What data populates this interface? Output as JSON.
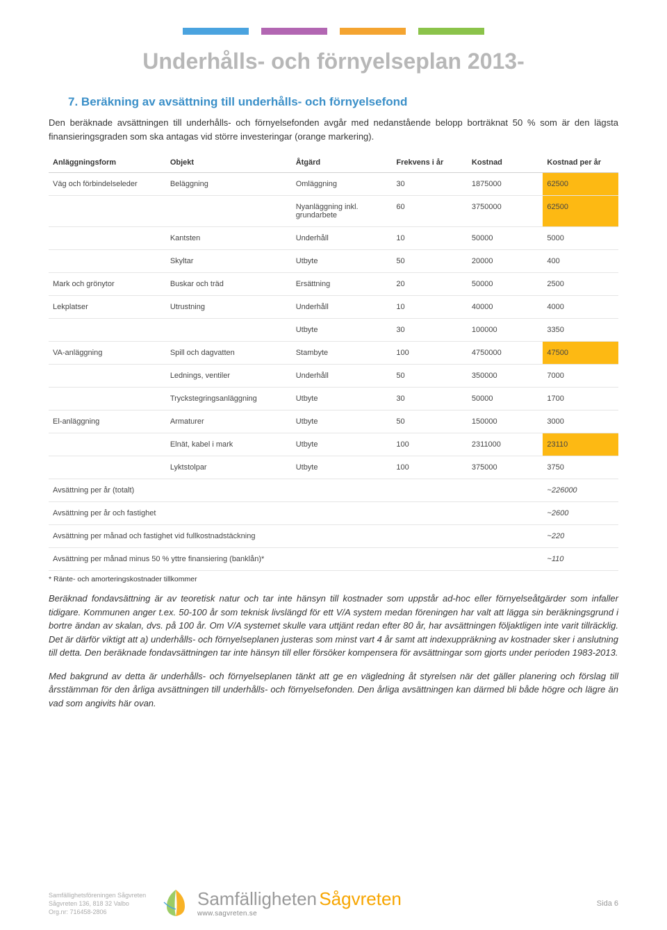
{
  "top_bars": [
    "#4aa3df",
    "#b266b2",
    "#f4a430",
    "#8bc34a"
  ],
  "title": "Underhålls- och förnyelseplan 2013-",
  "section": {
    "number": "7.",
    "heading": "Beräkning av avsättning till underhålls- och förnyelsefond",
    "intro": "Den beräknade avsättningen till underhålls- och förnyelsefonden avgår med nedanstående belopp borträknat 50 % som är den lägsta finansieringsgraden som ska antagas vid större investeringar (orange markering)."
  },
  "table": {
    "columns": [
      "Anläggningsform",
      "Objekt",
      "Åtgärd",
      "Frekvens i år",
      "Kostnad",
      "Kostnad per år"
    ],
    "highlight_color": "#fdb913",
    "rows": [
      {
        "form": "Väg och förbindelseleder",
        "obj": "Beläggning",
        "act": "Omläggning",
        "frek": "30",
        "kost": "1875000",
        "per": "62500",
        "hl": true
      },
      {
        "form": "",
        "obj": "",
        "act": "Nyanläggning inkl. grundarbete",
        "frek": "60",
        "kost": "3750000",
        "per": "62500",
        "hl": true
      },
      {
        "form": "",
        "obj": "Kantsten",
        "act": "Underhåll",
        "frek": "10",
        "kost": "50000",
        "per": "5000",
        "hl": false
      },
      {
        "form": "",
        "obj": "Skyltar",
        "act": "Utbyte",
        "frek": "50",
        "kost": "20000",
        "per": "400",
        "hl": false
      },
      {
        "form": "Mark och grönytor",
        "obj": "Buskar och träd",
        "act": "Ersättning",
        "frek": "20",
        "kost": "50000",
        "per": "2500",
        "hl": false
      },
      {
        "form": "Lekplatser",
        "obj": "Utrustning",
        "act": "Underhåll",
        "frek": "10",
        "kost": "40000",
        "per": "4000",
        "hl": false
      },
      {
        "form": "",
        "obj": "",
        "act": "Utbyte",
        "frek": "30",
        "kost": "100000",
        "per": "3350",
        "hl": false
      },
      {
        "form": "VA-anläggning",
        "obj": "Spill och dagvatten",
        "act": "Stambyte",
        "frek": "100",
        "kost": "4750000",
        "per": "47500",
        "hl": true
      },
      {
        "form": "",
        "obj": "Lednings, ventiler",
        "act": "Underhåll",
        "frek": "50",
        "kost": "350000",
        "per": "7000",
        "hl": false
      },
      {
        "form": "",
        "obj": "Tryckstegringsanläggning",
        "act": "Utbyte",
        "frek": "30",
        "kost": "50000",
        "per": "1700",
        "hl": false
      },
      {
        "form": "El-anläggning",
        "obj": "Armaturer",
        "act": "Utbyte",
        "frek": "50",
        "kost": "150000",
        "per": "3000",
        "hl": false
      },
      {
        "form": "",
        "obj": "Elnät, kabel i mark",
        "act": "Utbyte",
        "frek": "100",
        "kost": "2311000",
        "per": "23110",
        "hl": true
      },
      {
        "form": "",
        "obj": "Lyktstolpar",
        "act": "Utbyte",
        "frek": "100",
        "kost": "375000",
        "per": "3750",
        "hl": false
      }
    ],
    "summary": [
      {
        "label": "Avsättning per år (totalt)",
        "val": "~226000"
      },
      {
        "label": "Avsättning per år och fastighet",
        "val": "~2600"
      },
      {
        "label": "Avsättning per månad och fastighet vid fullkostnadstäckning",
        "val": "~220"
      },
      {
        "label": "Avsättning per månad minus 50 % yttre finansiering (banklån)*",
        "val": "~110"
      }
    ]
  },
  "footnote": "* Ränte- och amorteringskostnader tillkommer",
  "para1": "Beräknad fondavsättning är av teoretisk natur och tar inte hänsyn till kostnader som uppstår ad-hoc eller förnyelseåtgärder som infaller tidigare. Kommunen anger t.ex. 50-100 år som teknisk livslängd för ett V/A system medan föreningen har valt att lägga sin beräkningsgrund i bortre ändan av skalan, dvs. på 100 år. Om V/A systemet skulle vara uttjänt redan efter 80 år, har avsättningen följaktligen inte varit tillräcklig. Det är därför viktigt att a) underhålls- och förnyelseplanen justeras som minst vart 4 år samt att indexuppräkning av kostnader sker i anslutning till detta. Den beräknade fondavsättningen tar inte hänsyn till eller försöker kompensera för avsättningar som gjorts under perioden 1983-2013.",
  "para2": "Med bakgrund av detta är underhålls- och förnyelseplanen tänkt att ge en vägledning åt styrelsen när det gäller planering och förslag till årsstämman för den årliga avsättningen till underhålls- och förnyelsefonden. Den årliga avsättningen kan därmed bli både högre och lägre än vad som angivits här ovan.",
  "footer": {
    "org1": "Samfällighetsföreningen Sågvreten",
    "org2": "Sågvreten 136, 818 32 Valbo",
    "org3": "Org.nr: 716458-2806",
    "logo_main": "Samfälligheten",
    "logo_sub": "Sågvreten",
    "logo_url": "www.sagvreten.se",
    "page": "Sida 6"
  },
  "colors": {
    "title": "#b7b7b7",
    "heading": "#3a8fc8",
    "logo_orange": "#f7a500",
    "logo_grey": "#999999",
    "footer_text": "#aaaaaa"
  }
}
